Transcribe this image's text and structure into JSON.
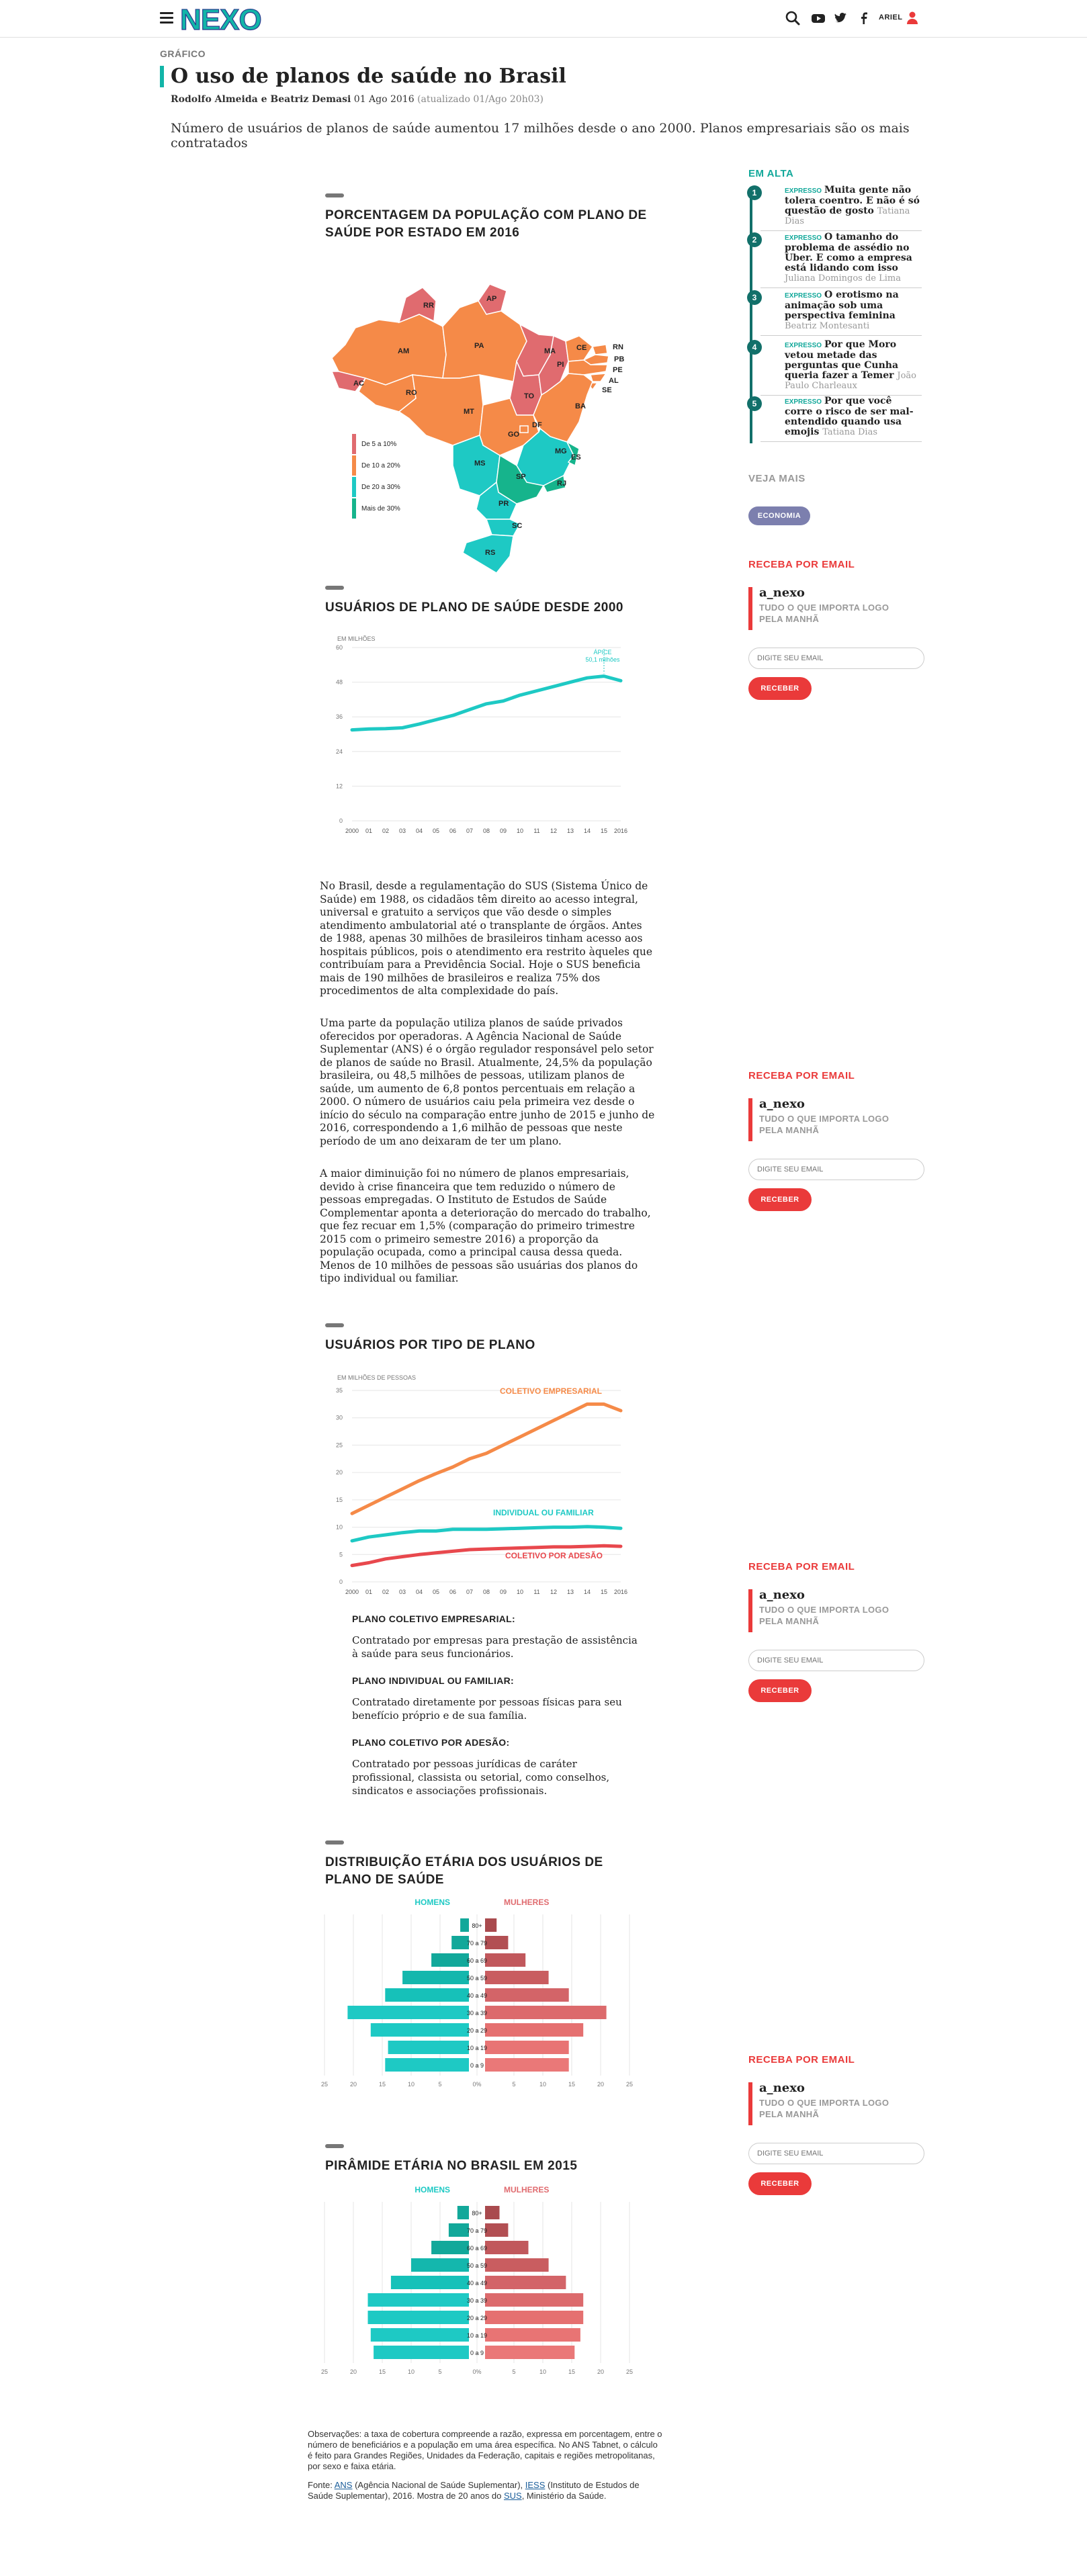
{
  "header": {
    "logo": "NEXO",
    "user_name": "ARIEL",
    "colors": {
      "logo_accent": "#12b5a8",
      "user_icon": "#ea3a3a"
    }
  },
  "article": {
    "kicker": "GRÁFICO",
    "title": "O uso de planos de saúde no Brasil",
    "authors": "Rodolfo Almeida e Beatriz Demasi",
    "date": "01 Ago 2016",
    "updated": "(atualizado 01/Ago 20h03)",
    "lede": "Número de usuários de planos de saúde aumentou 17 milhões desde o ano 2000. Planos empresariais são os mais contratados"
  },
  "map_section": {
    "title": "PORCENTAGEM DA POPULAÇÃO COM PLANO DE SAÚDE POR ESTADO EM 2016",
    "legend": [
      {
        "label": "De 5 a 10%",
        "color": "#e06b6f"
      },
      {
        "label": "De 10 a 20%",
        "color": "#f58a48"
      },
      {
        "label": "De 20 a 30%",
        "color": "#1ec9c4"
      },
      {
        "label": "Mais de 30%",
        "color": "#16b48c"
      }
    ],
    "states": [
      "RR",
      "AP",
      "AM",
      "PA",
      "MA",
      "CE",
      "RN",
      "PB",
      "PE",
      "AL",
      "SE",
      "AC",
      "RO",
      "TO",
      "PI",
      "BA",
      "MT",
      "GO",
      "DF",
      "MG",
      "ES",
      "MS",
      "SP",
      "RJ",
      "PR",
      "SC",
      "RS"
    ]
  },
  "chart1": {
    "title": "USUÁRIOS DE PLANO DE SAÚDE DESDE 2000",
    "unit_label": "EM MILHÕES",
    "peak_label": "ÁPICE",
    "peak_value": "50,1 milhões",
    "y_ticks": [
      "0",
      "12",
      "24",
      "36",
      "48",
      "60"
    ],
    "x_ticks": [
      "2000",
      "01",
      "02",
      "03",
      "04",
      "05",
      "06",
      "07",
      "08",
      "09",
      "10",
      "11",
      "12",
      "13",
      "14",
      "15",
      "2016"
    ]
  },
  "body_paragraphs": [
    "No Brasil, desde a regulamentação do SUS (Sistema Único de Saúde) em 1988, os cidadãos têm direito ao acesso integral, universal e gratuito a serviços que vão desde o simples atendimento ambulatorial até o transplante de órgãos. Antes de 1988, apenas 30 milhões de brasileiros tinham acesso aos hospitais públicos, pois o atendimento era restrito àqueles que contribuíam para a Previdência Social. Hoje o SUS beneficia mais de 190 milhões de brasileiros e realiza 75% dos procedimentos de alta complexidade do país.",
    "Uma parte da população utiliza planos de saúde privados oferecidos por operadoras. A Agência Nacional de Saúde Suplementar (ANS) é o órgão regulador responsável pelo setor de planos de saúde no Brasil. Atualmente, 24,5% da população brasileira, ou 48,5 milhões de pessoas, utilizam planos de saúde, um aumento de 6,8 pontos percentuais em relação a 2000. O número de usuários caiu pela primeira vez desde o início do século na comparação entre junho de 2015 e junho de 2016, correspondendo a 1,6 milhão de pessoas que neste período de um ano deixaram de ter um plano.",
    "A maior diminuição foi no número de planos empresariais, devido à crise financeira que tem reduzido o número de pessoas empregadas. O Instituto de Estudos de Saúde Complementar aponta a deterioração do mercado do trabalho, que fez recuar em 1,5% (comparação do primeiro trimestre 2015 com o primeiro semestre 2016) a proporção da população ocupada, como a principal causa dessa queda. Menos de 10 milhões de pessoas são usuárias dos planos do tipo individual ou familiar."
  ],
  "chart2": {
    "title": "USUÁRIOS POR TIPO DE PLANO",
    "unit_label": "EM MILHÕES DE PESSOAS",
    "y_ticks": [
      "0",
      "5",
      "10",
      "15",
      "20",
      "25",
      "30",
      "35"
    ],
    "x_ticks": [
      "2000",
      "01",
      "02",
      "03",
      "04",
      "05",
      "06",
      "07",
      "08",
      "09",
      "10",
      "11",
      "12",
      "13",
      "14",
      "15",
      "2016"
    ],
    "series_labels": [
      "COLETIVO EMPRESARIAL",
      "INDIVIDUAL OU FAMILIAR",
      "COLETIVO POR ADESÃO"
    ],
    "colors": [
      "#f58a48",
      "#1ec9c4",
      "#e8484d"
    ]
  },
  "definitions": [
    {
      "term": "PLANO COLETIVO EMPRESARIAL:",
      "text": "Contratado por empresas para prestação de assistência à saúde para seus funcionários."
    },
    {
      "term": "PLANO INDIVIDUAL OU FAMILIAR:",
      "text": "Contratado diretamente por pessoas físicas para seu benefício próprio e de sua família."
    },
    {
      "term": "PLANO COLETIVO POR ADESÃO:",
      "text": "Contratado por pessoas jurídicas de caráter profissional, classista ou setorial, como conselhos, sindicatos e associações profissionais."
    }
  ],
  "pyramid1": {
    "title": "DISTRIBUIÇÃO ETÁRIA DOS USUÁRIOS DE PLANO DE SAÚDE",
    "left_label": "HOMENS",
    "right_label": "MULHERES",
    "x_ticks": [
      "25",
      "20",
      "15",
      "10",
      "5",
      "0%",
      "5",
      "10",
      "15",
      "20",
      "25"
    ]
  },
  "pyramid2": {
    "title": "PIRÂMIDE ETÁRIA NO BRASIL EM 2015",
    "left_label": "HOMENS",
    "right_label": "MULHERES",
    "x_ticks": [
      "25",
      "20",
      "15",
      "10",
      "5",
      "0%",
      "5",
      "10",
      "15",
      "20",
      "25"
    ]
  },
  "chart_data": [
    {
      "type": "line",
      "title": "USUÁRIOS DE PLANO DE SAÚDE DESDE 2000",
      "ylabel": "EM MILHÕES",
      "x": [
        "2000",
        "01",
        "02",
        "03",
        "04",
        "05",
        "06",
        "07",
        "08",
        "09",
        "10",
        "11",
        "12",
        "13",
        "14",
        "15",
        "2016"
      ],
      "ylim": [
        0,
        60
      ],
      "series": [
        {
          "values": [
            31.5,
            31.8,
            31.9,
            32.2,
            33.5,
            35.0,
            36.5,
            38.5,
            40.5,
            41.5,
            43.5,
            45.0,
            46.5,
            48.0,
            49.5,
            50.1,
            48.5
          ]
        }
      ],
      "annotation": "ÁPICE 50,1 milhões"
    },
    {
      "type": "line",
      "title": "USUÁRIOS POR TIPO DE PLANO",
      "ylabel": "EM MILHÕES DE PESSOAS",
      "x": [
        "2000",
        "01",
        "02",
        "03",
        "04",
        "05",
        "06",
        "07",
        "08",
        "09",
        "10",
        "11",
        "12",
        "13",
        "14",
        "15",
        "2016"
      ],
      "ylim": [
        0,
        35
      ],
      "series": [
        {
          "name": "COLETIVO EMPRESARIAL",
          "values": [
            12.5,
            14.0,
            15.5,
            17.0,
            18.5,
            19.8,
            21.0,
            22.5,
            23.5,
            25.0,
            26.5,
            28.0,
            29.5,
            31.0,
            32.5,
            32.5,
            31.3
          ]
        },
        {
          "name": "INDIVIDUAL OU FAMILIAR",
          "values": [
            7.5,
            8.2,
            8.6,
            9.0,
            9.3,
            9.3,
            9.6,
            9.6,
            9.6,
            9.7,
            9.8,
            9.9,
            10.0,
            10.0,
            10.1,
            10.0,
            9.8
          ]
        },
        {
          "name": "COLETIVO POR ADESÃO",
          "values": [
            3.0,
            3.5,
            4.2,
            4.6,
            5.0,
            5.3,
            5.6,
            5.9,
            6.0,
            6.1,
            6.2,
            6.3,
            6.4,
            6.4,
            6.5,
            6.6,
            6.5
          ]
        }
      ]
    },
    {
      "type": "bar",
      "title": "DISTRIBUIÇÃO ETÁRIA DOS USUÁRIOS DE PLANO DE SAÚDE",
      "categories": [
        "80+",
        "70 a 79",
        "60 a 69",
        "50 a 59",
        "40 a 49",
        "30 a 39",
        "20 a 29",
        "10 a 19",
        "0 a 9"
      ],
      "series": [
        {
          "name": "HOMENS",
          "values": [
            1.5,
            3.0,
            6.5,
            11.5,
            14.5,
            21.0,
            17.0,
            14.0,
            14.5
          ]
        },
        {
          "name": "MULHERES",
          "values": [
            2.0,
            4.0,
            7.0,
            11.0,
            14.5,
            21.0,
            17.0,
            14.5,
            14.5
          ]
        }
      ],
      "xlim": [
        -25,
        25
      ]
    },
    {
      "type": "bar",
      "title": "PIRÂMIDE ETÁRIA NO BRASIL EM 2015",
      "categories": [
        "80+",
        "70 a 79",
        "60 a 69",
        "50 a 59",
        "40 a 49",
        "30 a 39",
        "20 a 29",
        "10 a 19",
        "0 a 9"
      ],
      "series": [
        {
          "name": "HOMENS",
          "values": [
            2.0,
            3.5,
            6.5,
            10.0,
            13.5,
            17.5,
            17.5,
            17.0,
            16.5
          ]
        },
        {
          "name": "MULHERES",
          "values": [
            2.5,
            4.0,
            7.5,
            11.0,
            14.0,
            17.0,
            17.0,
            16.5,
            15.5
          ]
        }
      ],
      "xlim": [
        -25,
        25
      ]
    }
  ],
  "notes": {
    "observacoes": "Observações: a taxa de cobertura compreende a razão, expressa em porcentagem, entre o número de beneficiários e a população em uma área específica. No ANS Tabnet, o cálculo é feito para Grandes Regiões, Unidades da Federação, capitais e regiões metropolitanas, por sexo e faixa etária.",
    "fonte_prefix": "Fonte: ",
    "fonte_ans": "ANS",
    "fonte_ans_desc": " (Agência Nacional de Saúde Suplementar), ",
    "fonte_iess": "IESS",
    "fonte_iess_desc": " (Instituto de Estudos de Saúde Suplementar), 2016. Mostra de 20 anos do ",
    "fonte_sus": "SUS",
    "fonte_sus_desc": ", Ministério da Saúde."
  },
  "sidebar": {
    "em_alta_title": "EM ALTA",
    "em_alta": [
      {
        "num": "1",
        "tag": "EXPRESSO",
        "title": "Muita gente não tolera coentro. E não é só questão de gosto",
        "author": "Tatiana Dias"
      },
      {
        "num": "2",
        "tag": "EXPRESSO",
        "title": "O tamanho do problema de assédio no Uber. E como a empresa está lidando com isso",
        "author": "Juliana Domingos de Lima"
      },
      {
        "num": "3",
        "tag": "EXPRESSO",
        "title": "O erotismo na animação sob uma perspectiva feminina",
        "author": "Beatriz Montesanti"
      },
      {
        "num": "4",
        "tag": "EXPRESSO",
        "title": "Por que Moro vetou metade das perguntas que Cunha queria fazer a Temer",
        "author": "João Paulo Charleaux"
      },
      {
        "num": "5",
        "tag": "EXPRESSO",
        "title": "Por que você corre o risco de ser mal-entendido quando usa emojis",
        "author": "Tatiana Dias"
      }
    ],
    "veja_mais": "VEJA MAIS",
    "tag": "ECONOMIA",
    "newsletter": {
      "title": "RECEBA POR EMAIL",
      "logo": "a_nexo",
      "desc": "TUDO O QUE IMPORTA LOGO PELA MANHÃ",
      "placeholder": "DIGITE SEU EMAIL",
      "button": "RECEBER"
    }
  }
}
